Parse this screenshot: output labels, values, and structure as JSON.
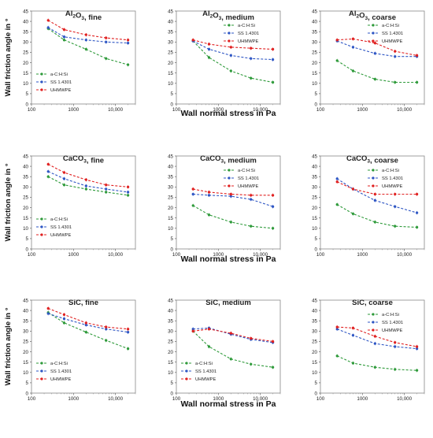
{
  "colors": {
    "a-C:H:Si": "#2e9a3a",
    "SS 1.4301": "#2e56c4",
    "UHMWPE": "#e02020"
  },
  "axis_titles": {
    "y": "Wall friction angle in °",
    "x": "Wall normal stress in Pa"
  },
  "chart_data": [
    {
      "type": "line",
      "title_prefix": "Al",
      "title_sub": "2",
      "title_rest": "O",
      "title_sub2": "3",
      "title_suffix": ", fine",
      "x": [
        250,
        600,
        2000,
        6000,
        20000
      ],
      "xscale": "log",
      "xlim": [
        100,
        30000
      ],
      "ylim": [
        0,
        45
      ],
      "xticks": [
        "100",
        "1000",
        "10,000"
      ],
      "yticks": [
        0,
        5,
        10,
        15,
        20,
        25,
        30,
        35,
        40,
        45
      ],
      "legend_pos": "lower-left",
      "series": [
        {
          "name": "a-C:H:Si",
          "values": [
            36.5,
            31,
            26.5,
            22,
            19
          ]
        },
        {
          "name": "SS 1.4301",
          "values": [
            37,
            32.5,
            31,
            30,
            29.5
          ]
        },
        {
          "name": "UHMWPE",
          "values": [
            40.5,
            36,
            33.5,
            32,
            31
          ]
        }
      ]
    },
    {
      "type": "line",
      "title_prefix": "Al",
      "title_sub": "2",
      "title_rest": "O",
      "title_sub2": "3",
      "title_suffix": ", medium",
      "x": [
        250,
        600,
        2000,
        6000,
        20000
      ],
      "xscale": "log",
      "xlim": [
        100,
        30000
      ],
      "ylim": [
        0,
        45
      ],
      "xticks": [
        "100",
        "1000",
        "10,000"
      ],
      "yticks": [
        0,
        5,
        10,
        15,
        20,
        25,
        30,
        35,
        40,
        45
      ],
      "legend_pos": "upper-right",
      "series": [
        {
          "name": "a-C:H:Si",
          "values": [
            30.5,
            22.5,
            16,
            12.5,
            10.5
          ]
        },
        {
          "name": "SS 1.4301",
          "values": [
            30.5,
            26.5,
            23.5,
            22,
            21.5
          ]
        },
        {
          "name": "UHMWPE",
          "values": [
            31,
            29,
            27.5,
            27,
            26.5
          ]
        }
      ]
    },
    {
      "type": "line",
      "title_prefix": "Al",
      "title_sub": "2",
      "title_rest": "O",
      "title_sub2": "3",
      "title_suffix": ", coarse",
      "x": [
        250,
        600,
        2000,
        6000,
        20000
      ],
      "xscale": "log",
      "xlim": [
        100,
        30000
      ],
      "ylim": [
        0,
        45
      ],
      "xticks": [
        "100",
        "1000",
        "10,000"
      ],
      "yticks": [
        0,
        5,
        10,
        15,
        20,
        25,
        30,
        35,
        40,
        45
      ],
      "legend_pos": "upper-right",
      "series": [
        {
          "name": "a-C:H:Si",
          "values": [
            21,
            16,
            12,
            10.5,
            10.5
          ]
        },
        {
          "name": "SS 1.4301",
          "values": [
            30.5,
            27.5,
            24.5,
            23,
            23
          ]
        },
        {
          "name": "UHMWPE",
          "values": [
            31,
            31.5,
            29.5,
            25.5,
            23.5
          ]
        }
      ]
    },
    {
      "type": "line",
      "title_prefix": "CaCO",
      "title_sub": "3",
      "title_rest": "",
      "title_sub2": "",
      "title_suffix": ", fine",
      "x": [
        250,
        600,
        2000,
        6000,
        20000
      ],
      "xscale": "log",
      "xlim": [
        100,
        30000
      ],
      "ylim": [
        0,
        45
      ],
      "xticks": [
        "100",
        "1000",
        "10,000"
      ],
      "yticks": [
        0,
        5,
        10,
        15,
        20,
        25,
        30,
        35,
        40,
        45
      ],
      "legend_pos": "lower-left",
      "series": [
        {
          "name": "a-C:H:Si",
          "values": [
            35,
            31,
            29,
            27.5,
            26
          ]
        },
        {
          "name": "SS 1.4301",
          "values": [
            37.5,
            34,
            30.5,
            29,
            27.5
          ]
        },
        {
          "name": "UHMWPE",
          "values": [
            41,
            37,
            33.5,
            31,
            30
          ]
        }
      ]
    },
    {
      "type": "line",
      "title_prefix": "CaCO",
      "title_sub": "3",
      "title_rest": "",
      "title_sub2": "",
      "title_suffix": ", medium",
      "x": [
        250,
        600,
        2000,
        6000,
        20000
      ],
      "xscale": "log",
      "xlim": [
        100,
        30000
      ],
      "ylim": [
        0,
        45
      ],
      "xticks": [
        "100",
        "1000",
        "10,000"
      ],
      "yticks": [
        0,
        5,
        10,
        15,
        20,
        25,
        30,
        35,
        40,
        45
      ],
      "legend_pos": "upper-right",
      "series": [
        {
          "name": "a-C:H:Si",
          "values": [
            21,
            16.5,
            13,
            11,
            10
          ]
        },
        {
          "name": "SS 1.4301",
          "values": [
            26.5,
            26,
            25.5,
            24,
            20.5
          ]
        },
        {
          "name": "UHMWPE",
          "values": [
            29,
            27.5,
            26.5,
            26,
            26
          ]
        }
      ]
    },
    {
      "type": "line",
      "title_prefix": "CaCO",
      "title_sub": "3",
      "title_rest": "",
      "title_sub2": "",
      "title_suffix": ", coarse",
      "x": [
        250,
        600,
        2000,
        6000,
        20000
      ],
      "xscale": "log",
      "xlim": [
        100,
        30000
      ],
      "ylim": [
        0,
        45
      ],
      "xticks": [
        "100",
        "1000",
        "10,000"
      ],
      "yticks": [
        0,
        5,
        10,
        15,
        20,
        25,
        30,
        35,
        40,
        45
      ],
      "legend_pos": "upper-right",
      "series": [
        {
          "name": "a-C:H:Si",
          "values": [
            21.5,
            17,
            13,
            11,
            10.5
          ]
        },
        {
          "name": "SS 1.4301",
          "values": [
            34,
            29,
            23.5,
            20.5,
            17.5
          ]
        },
        {
          "name": "UHMWPE",
          "values": [
            32.5,
            29,
            26.5,
            26.5,
            26.5
          ]
        }
      ]
    },
    {
      "type": "line",
      "title_prefix": "SiC",
      "title_sub": "",
      "title_rest": "",
      "title_sub2": "",
      "title_suffix": ", fine",
      "x": [
        250,
        600,
        2000,
        6000,
        20000
      ],
      "xscale": "log",
      "xlim": [
        100,
        30000
      ],
      "ylim": [
        0,
        45
      ],
      "xticks": [
        "100",
        "1000",
        "10,000"
      ],
      "yticks": [
        0,
        5,
        10,
        15,
        20,
        25,
        30,
        35,
        40,
        45
      ],
      "legend_pos": "lower-left",
      "series": [
        {
          "name": "a-C:H:Si",
          "values": [
            39,
            34,
            29.5,
            25.5,
            21.5
          ]
        },
        {
          "name": "SS 1.4301",
          "values": [
            38.5,
            36,
            33,
            31,
            29.5
          ]
        },
        {
          "name": "UHMWPE",
          "values": [
            41,
            38,
            34,
            32,
            31
          ]
        }
      ]
    },
    {
      "type": "line",
      "title_prefix": "SiC",
      "title_sub": "",
      "title_rest": "",
      "title_sub2": "",
      "title_suffix": ", medium",
      "x": [
        250,
        600,
        2000,
        6000,
        20000
      ],
      "xscale": "log",
      "xlim": [
        100,
        30000
      ],
      "ylim": [
        0,
        45
      ],
      "xticks": [
        "100",
        "1000",
        "10,000"
      ],
      "yticks": [
        0,
        5,
        10,
        15,
        20,
        25,
        30,
        35,
        40,
        45
      ],
      "legend_pos": "lower-left",
      "series": [
        {
          "name": "a-C:H:Si",
          "values": [
            30,
            22.5,
            16.5,
            14,
            12.5
          ]
        },
        {
          "name": "SS 1.4301",
          "values": [
            31,
            31.5,
            28.5,
            26,
            24.5
          ]
        },
        {
          "name": "UHMWPE",
          "values": [
            30,
            31,
            29,
            26.5,
            25
          ]
        }
      ]
    },
    {
      "type": "line",
      "title_prefix": "SiC",
      "title_sub": "",
      "title_rest": "",
      "title_sub2": "",
      "title_suffix": ", coarse",
      "x": [
        250,
        600,
        2000,
        6000,
        20000
      ],
      "xscale": "log",
      "xlim": [
        100,
        30000
      ],
      "ylim": [
        0,
        45
      ],
      "xticks": [
        "100",
        "1000",
        "10,000"
      ],
      "yticks": [
        0,
        5,
        10,
        15,
        20,
        25,
        30,
        35,
        40,
        45
      ],
      "legend_pos": "upper-right",
      "series": [
        {
          "name": "a-C:H:Si",
          "values": [
            18,
            14.5,
            12.5,
            11.5,
            11
          ]
        },
        {
          "name": "SS 1.4301",
          "values": [
            31,
            28,
            24,
            22.5,
            21.5
          ]
        },
        {
          "name": "UHMWPE",
          "values": [
            32,
            31.5,
            27.5,
            24.5,
            22.5
          ]
        }
      ]
    }
  ]
}
